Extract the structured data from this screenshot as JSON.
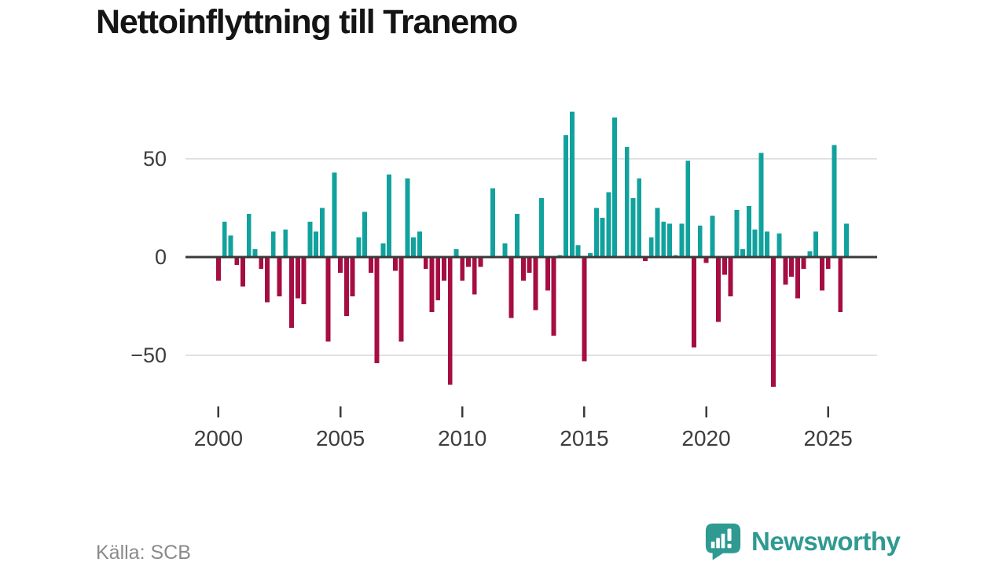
{
  "title": "Nettoinflyttning till Tranemo",
  "source": {
    "label": "Källa: SCB"
  },
  "logo": {
    "text": "Newsworthy",
    "icon": "speech-bubble-bar-chart-exclamation"
  },
  "colors": {
    "positive": "#11A29E",
    "negative": "#A60D42",
    "zero_axis": "#3A3A3A",
    "gridline": "#E1E1E1",
    "tick_text": "#3D3D3D",
    "title_text": "#151515",
    "source_text": "#8A8A8A",
    "logo": "#2F9A91",
    "background": "#FFFFFF"
  },
  "y_axis": {
    "tick_values": [
      50,
      0,
      -50
    ],
    "tick_labels": [
      "50",
      "0",
      "−50"
    ]
  },
  "x_axis": {
    "tick_labels": [
      "2000",
      "2005",
      "2010",
      "2015",
      "2020",
      "2025"
    ]
  },
  "chart_data": {
    "type": "bar",
    "title": "Nettoinflyttning till Tranemo",
    "xlabel": "",
    "ylabel": "",
    "ylim": [
      -75,
      80
    ],
    "yticks": [
      50,
      0,
      -50
    ],
    "grid": "horizontal-at-±50",
    "legend": "none",
    "x": [
      "2000 Q1",
      "2000 Q2",
      "2000 Q3",
      "2000 Q4",
      "2001 Q1",
      "2001 Q2",
      "2001 Q3",
      "2001 Q4",
      "2002 Q1",
      "2002 Q2",
      "2002 Q3",
      "2002 Q4",
      "2003 Q1",
      "2003 Q2",
      "2003 Q3",
      "2003 Q4",
      "2004 Q1",
      "2004 Q2",
      "2004 Q3",
      "2004 Q4",
      "2005 Q1",
      "2005 Q2",
      "2005 Q3",
      "2005 Q4",
      "2006 Q1",
      "2006 Q2",
      "2006 Q3",
      "2006 Q4",
      "2007 Q1",
      "2007 Q2",
      "2007 Q3",
      "2007 Q4",
      "2008 Q1",
      "2008 Q2",
      "2008 Q3",
      "2008 Q4",
      "2009 Q1",
      "2009 Q2",
      "2009 Q3",
      "2009 Q4",
      "2010 Q1",
      "2010 Q2",
      "2010 Q3",
      "2010 Q4",
      "2011 Q1",
      "2011 Q2",
      "2011 Q3",
      "2011 Q4",
      "2012 Q1",
      "2012 Q2",
      "2012 Q3",
      "2012 Q4",
      "2013 Q1",
      "2013 Q2",
      "2013 Q3",
      "2013 Q4",
      "2014 Q1",
      "2014 Q2",
      "2014 Q3",
      "2014 Q4",
      "2015 Q1",
      "2015 Q2",
      "2015 Q3",
      "2015 Q4",
      "2016 Q1",
      "2016 Q2",
      "2016 Q3",
      "2016 Q4",
      "2017 Q1",
      "2017 Q2",
      "2017 Q3",
      "2017 Q4",
      "2018 Q1",
      "2018 Q2",
      "2018 Q3",
      "2018 Q4",
      "2019 Q1",
      "2019 Q2",
      "2019 Q3",
      "2019 Q4",
      "2020 Q1",
      "2020 Q2",
      "2020 Q3",
      "2020 Q4",
      "2021 Q1",
      "2021 Q2",
      "2021 Q3",
      "2021 Q4",
      "2022 Q1",
      "2022 Q2",
      "2022 Q3",
      "2022 Q4",
      "2023 Q1",
      "2023 Q2",
      "2023 Q3",
      "2023 Q4",
      "2024 Q1",
      "2024 Q2",
      "2024 Q3",
      "2024 Q4",
      "2025 Q1",
      "2025 Q2",
      "2025 Q3",
      "2025 Q4"
    ],
    "values": [
      -12,
      18,
      11,
      -4,
      -15,
      22,
      4,
      -6,
      -23,
      13,
      -20,
      14,
      -36,
      -21,
      -24,
      18,
      13,
      25,
      -43,
      43,
      -8,
      -30,
      -20,
      10,
      23,
      -8,
      -54,
      7,
      42,
      -7,
      -43,
      40,
      10,
      13,
      -6,
      -28,
      -22,
      -12,
      -65,
      4,
      -12,
      -5,
      -19,
      -5,
      0,
      35,
      0,
      7,
      -31,
      22,
      -12,
      -8,
      -27,
      30,
      -17,
      -40,
      1,
      62,
      74,
      6,
      -53,
      2,
      25,
      20,
      33,
      71,
      0,
      56,
      30,
      40,
      -2,
      10,
      25,
      18,
      17,
      1,
      17,
      49,
      -46,
      16,
      -3,
      21,
      -33,
      -9,
      -20,
      24,
      4,
      26,
      14,
      53,
      13,
      -66,
      12,
      -14,
      -10,
      -21,
      -6,
      3,
      13,
      -17,
      -6,
      57,
      -28,
      17
    ]
  }
}
